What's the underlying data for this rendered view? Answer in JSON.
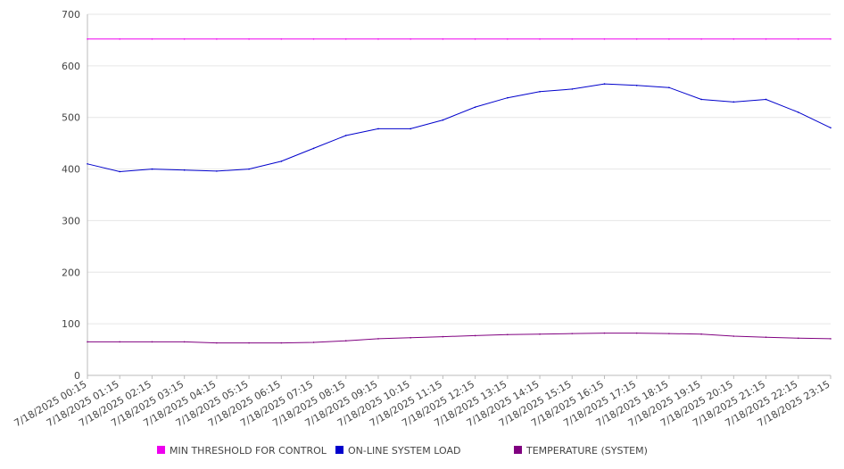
{
  "chart_data": {
    "type": "line",
    "title": "",
    "xlabel": "",
    "ylabel": "",
    "ylim": [
      0,
      700
    ],
    "yticks": [
      0,
      100,
      200,
      300,
      400,
      500,
      600,
      700
    ],
    "grid": true,
    "legend_position": "bottom",
    "x": [
      "7/18/2025 00:15",
      "7/18/2025 01:15",
      "7/18/2025 02:15",
      "7/18/2025 03:15",
      "7/18/2025 04:15",
      "7/18/2025 05:15",
      "7/18/2025 06:15",
      "7/18/2025 07:15",
      "7/18/2025 08:15",
      "7/18/2025 09:15",
      "7/18/2025 10:15",
      "7/18/2025 11:15",
      "7/18/2025 12:15",
      "7/18/2025 13:15",
      "7/18/2025 14:15",
      "7/18/2025 15:15",
      "7/18/2025 16:15",
      "7/18/2025 17:15",
      "7/18/2025 18:15",
      "7/18/2025 19:15",
      "7/18/2025 20:15",
      "7/18/2025 21:15",
      "7/18/2025 22:15",
      "7/18/2025 23:15"
    ],
    "series": [
      {
        "name": "MIN THRESHOLD FOR CONTROL",
        "color": "#ee00ee",
        "values": [
          652,
          652,
          652,
          652,
          652,
          652,
          652,
          652,
          652,
          652,
          652,
          652,
          652,
          652,
          652,
          652,
          652,
          652,
          652,
          652,
          652,
          652,
          652,
          652
        ]
      },
      {
        "name": "ON-LINE SYSTEM LOAD",
        "color": "#0000cc",
        "values": [
          410,
          395,
          400,
          398,
          396,
          400,
          415,
          440,
          465,
          478,
          478,
          495,
          520,
          538,
          550,
          555,
          565,
          562,
          558,
          535,
          530,
          535,
          510,
          480
        ]
      },
      {
        "name": "TEMPERATURE (SYSTEM)",
        "color": "#800080",
        "values": [
          65,
          65,
          65,
          65,
          63,
          63,
          63,
          64,
          67,
          71,
          73,
          75,
          77,
          79,
          80,
          81,
          82,
          82,
          81,
          80,
          76,
          74,
          72,
          71
        ]
      }
    ]
  }
}
